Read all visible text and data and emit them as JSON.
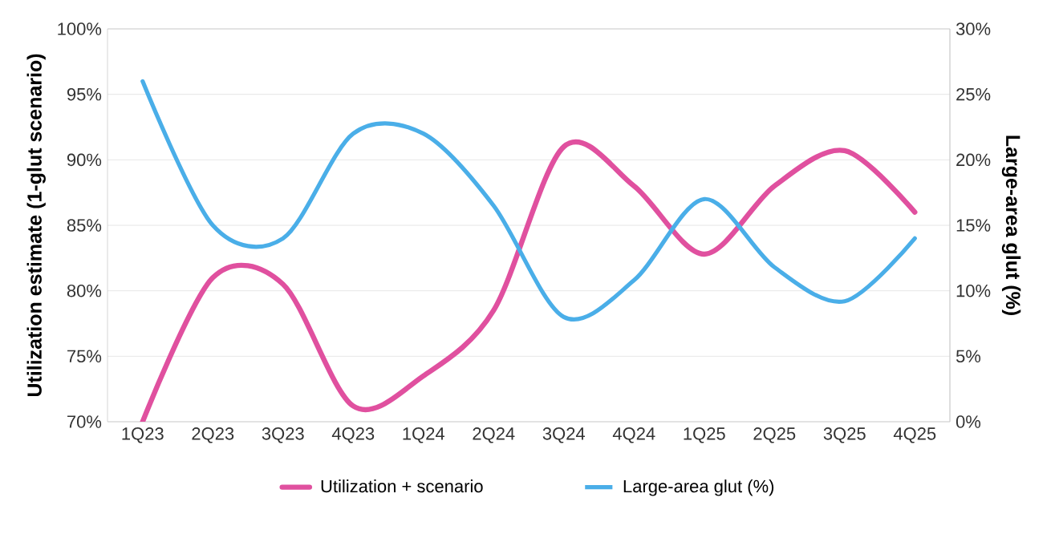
{
  "chart_data": {
    "type": "line",
    "ylabel": "Utilization estimate (1-glut scenario)",
    "y2label": "Large-area glut (%)",
    "categories": [
      "1Q23",
      "2Q23",
      "3Q23",
      "4Q23",
      "1Q24",
      "2Q24",
      "3Q24",
      "4Q24",
      "1Q25",
      "2Q25",
      "3Q25",
      "4Q25"
    ],
    "series": [
      {
        "name": "Utilization + scenario",
        "color": "#e0509f",
        "values": [
          70,
          81,
          80.5,
          71.2,
          73.5,
          78.5,
          91,
          88,
          82.8,
          88,
          90.7,
          86
        ]
      },
      {
        "name": "Large-area glut (%)",
        "color": "#4aaee8",
        "axis": "y2",
        "values": [
          26,
          15,
          14,
          22,
          22,
          16.5,
          8,
          10.8,
          17,
          11.8,
          9.2,
          14
        ]
      }
    ],
    "ylim": [
      70,
      100
    ],
    "yticks": [
      {
        "value": 70,
        "label": "70%"
      },
      {
        "value": 75,
        "label": "75%"
      },
      {
        "value": 80,
        "label": "80%"
      },
      {
        "value": 85,
        "label": "85%"
      },
      {
        "value": 90,
        "label": "90%"
      },
      {
        "value": 95,
        "label": "95%"
      },
      {
        "value": 100,
        "label": "100%"
      }
    ],
    "y2lim": [
      0,
      30
    ],
    "y2ticks": [
      {
        "value": 0,
        "label": "0%"
      },
      {
        "value": 5,
        "label": "5%"
      },
      {
        "value": 10,
        "label": "10%"
      },
      {
        "value": 15,
        "label": "15%"
      },
      {
        "value": 20,
        "label": "20%"
      },
      {
        "value": 25,
        "label": "25%"
      },
      {
        "value": 30,
        "label": "30%"
      }
    ],
    "grid": "y",
    "legend": "bottom",
    "marker": "none",
    "line_style": "solid"
  }
}
